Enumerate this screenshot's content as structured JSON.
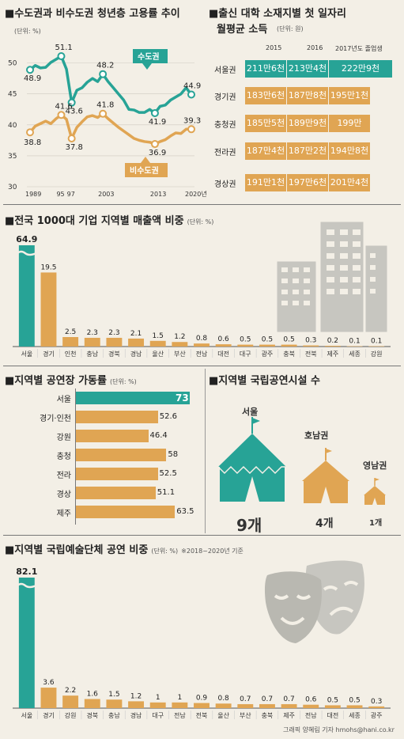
{
  "colors": {
    "teal": "#27a396",
    "orange": "#e0a553",
    "line": "#999999",
    "dark": "#222222"
  },
  "employment": {
    "title": "■수도권과 비수도권 청년층 고용률 추이",
    "unit": "(단위: %)",
    "label_capital": "수도권",
    "label_noncapital": "비수도권"
  },
  "wage": {
    "title_line1": "■출신 대학 소재지별 첫 일자리",
    "title_line2": "월평균 소득",
    "unit": "(단위: 원)",
    "years": [
      "2015",
      "2016",
      "2017년도 졸업생"
    ],
    "rows": [
      {
        "region": "서울권",
        "values": [
          "211만6천",
          "213만4천",
          "222만9천"
        ]
      },
      {
        "region": "경기권",
        "values": [
          "183만6천",
          "187만8천",
          "195만1천"
        ]
      },
      {
        "region": "충청권",
        "values": [
          "185만5천",
          "189만9천",
          "199만"
        ]
      },
      {
        "region": "전라권",
        "values": [
          "187만4천",
          "187만2천",
          "194만8천"
        ]
      },
      {
        "region": "경상권",
        "values": [
          "191만1천",
          "197만6천",
          "201만4천"
        ]
      }
    ]
  },
  "sales": {
    "title": "■전국 1000대 기업 지역별 매출액 비중",
    "unit": "(단위: %)"
  },
  "factory": {
    "title": "■지역별 공연장 가동률",
    "unit": "(단위: %)"
  },
  "venues": {
    "title": "■지역별 국립공연시설 수",
    "items": [
      {
        "region": "서울",
        "count": "9개"
      },
      {
        "region": "호남권",
        "count": "4개"
      },
      {
        "region": "영남권",
        "count": "1개"
      }
    ]
  },
  "arts": {
    "title": "■지역별 국립예술단체 공연 비중",
    "unit": "(단위: %)",
    "note": "※2018~2020년 기준"
  },
  "credit": "그래픽 양혜림 기자 hmohs@hani.co.kr",
  "chart_data": [
    {
      "type": "line",
      "title": "수도권과 비수도권 청년층 고용률 추이",
      "x_ticks": [
        "1989",
        "95",
        "97",
        "2003",
        "2013",
        "2020년"
      ],
      "ylim": [
        30,
        52
      ],
      "y_ticks": [
        30,
        35,
        40,
        45,
        50
      ],
      "series": [
        {
          "name": "수도권",
          "points": [
            [
              1989,
              48.9
            ],
            [
              1990,
              49.6
            ],
            [
              1991,
              49.2
            ],
            [
              1992,
              49.3
            ],
            [
              1993,
              50.1
            ],
            [
              1994,
              50.6
            ],
            [
              1995,
              51.1
            ],
            [
              1996,
              49.0
            ],
            [
              1997,
              43.6
            ],
            [
              1998,
              45.6
            ],
            [
              1999,
              46.0
            ],
            [
              2000,
              46.9
            ],
            [
              2001,
              47.5
            ],
            [
              2002,
              47.0
            ],
            [
              2003,
              48.2
            ],
            [
              2004,
              47.0
            ],
            [
              2005,
              46.0
            ],
            [
              2006,
              45.0
            ],
            [
              2007,
              44.0
            ],
            [
              2008,
              42.5
            ],
            [
              2009,
              42.4
            ],
            [
              2010,
              42.0
            ],
            [
              2011,
              42.0
            ],
            [
              2012,
              42.5
            ],
            [
              2013,
              41.9
            ],
            [
              2014,
              43.0
            ],
            [
              2015,
              43.2
            ],
            [
              2016,
              44.0
            ],
            [
              2017,
              44.5
            ],
            [
              2018,
              45.0
            ],
            [
              2019,
              46.0
            ],
            [
              2020,
              44.9
            ]
          ],
          "labels": [
            [
              1989,
              48.9
            ],
            [
              1995,
              51.1
            ],
            [
              1997,
              43.6
            ],
            [
              2003,
              48.2
            ],
            [
              2013,
              41.9
            ],
            [
              2020,
              44.9
            ]
          ]
        },
        {
          "name": "비수도권",
          "points": [
            [
              1989,
              38.8
            ],
            [
              1990,
              39.8
            ],
            [
              1991,
              40.2
            ],
            [
              1992,
              40.6
            ],
            [
              1993,
              40.2
            ],
            [
              1994,
              41.0
            ],
            [
              1995,
              41.6
            ],
            [
              1996,
              40.9
            ],
            [
              1997,
              37.8
            ],
            [
              1998,
              39.6
            ],
            [
              1999,
              40.5
            ],
            [
              2000,
              41.3
            ],
            [
              2001,
              41.5
            ],
            [
              2002,
              41.2
            ],
            [
              2003,
              41.8
            ],
            [
              2004,
              41.0
            ],
            [
              2005,
              40.3
            ],
            [
              2006,
              39.6
            ],
            [
              2007,
              39.0
            ],
            [
              2008,
              38.4
            ],
            [
              2009,
              37.8
            ],
            [
              2010,
              37.5
            ],
            [
              2011,
              37.3
            ],
            [
              2012,
              37.2
            ],
            [
              2013,
              36.9
            ],
            [
              2014,
              37.3
            ],
            [
              2015,
              37.6
            ],
            [
              2016,
              38.2
            ],
            [
              2017,
              38.7
            ],
            [
              2018,
              38.6
            ],
            [
              2019,
              39.3
            ],
            [
              2020,
              39.3
            ]
          ],
          "labels": [
            [
              1989,
              38.8
            ],
            [
              1995,
              41.6
            ],
            [
              1997,
              37.8
            ],
            [
              2003,
              41.8
            ],
            [
              2013,
              36.9
            ],
            [
              2020,
              39.3
            ]
          ]
        }
      ]
    },
    {
      "type": "table",
      "title": "출신 대학 소재지별 첫 일자리 월평균 소득",
      "columns": [
        "2015",
        "2016",
        "2017년도 졸업생"
      ],
      "rows": [
        "서울권",
        "경기권",
        "충청권",
        "전라권",
        "경상권"
      ],
      "values": [
        [
          2116000,
          2134000,
          2229000
        ],
        [
          1836000,
          1878000,
          1951000
        ],
        [
          1855000,
          1899000,
          1990000
        ],
        [
          1874000,
          1872000,
          1948000
        ],
        [
          1911000,
          1976000,
          2014000
        ]
      ]
    },
    {
      "type": "bar",
      "title": "전국 1000대 기업 지역별 매출액 비중",
      "categories": [
        "서울",
        "경기",
        "인천",
        "충남",
        "경북",
        "경남",
        "울산",
        "부산",
        "전남",
        "대전",
        "대구",
        "광주",
        "충북",
        "전북",
        "제주",
        "세종",
        "강원"
      ],
      "values": [
        64.9,
        19.5,
        2.5,
        2.3,
        2.3,
        2.1,
        1.5,
        1.2,
        0.8,
        0.6,
        0.5,
        0.5,
        0.5,
        0.3,
        0.2,
        0.1,
        0.1
      ]
    },
    {
      "type": "bar",
      "title": "지역별 공연장 가동률",
      "orientation": "horizontal",
      "categories": [
        "서울",
        "경기·인천",
        "강원",
        "충청",
        "전라",
        "경상",
        "제주"
      ],
      "values": [
        73,
        52.6,
        46.4,
        58,
        52.5,
        51.1,
        63.5
      ]
    },
    {
      "type": "bar",
      "title": "지역별 국립공연시설 수",
      "categories": [
        "서울",
        "호남권",
        "영남권"
      ],
      "values": [
        9,
        4,
        1
      ]
    },
    {
      "type": "bar",
      "title": "지역별 국립예술단체 공연 비중",
      "categories": [
        "서울",
        "경기",
        "강원",
        "경북",
        "충남",
        "경남",
        "대구",
        "전남",
        "전북",
        "울산",
        "부산",
        "충북",
        "제주",
        "전남",
        "대전",
        "세종",
        "광주"
      ],
      "values": [
        82.1,
        3.6,
        2.2,
        1.6,
        1.5,
        1.2,
        1,
        1,
        0.9,
        0.8,
        0.7,
        0.7,
        0.7,
        0.6,
        0.5,
        0.5,
        0.3
      ]
    }
  ]
}
